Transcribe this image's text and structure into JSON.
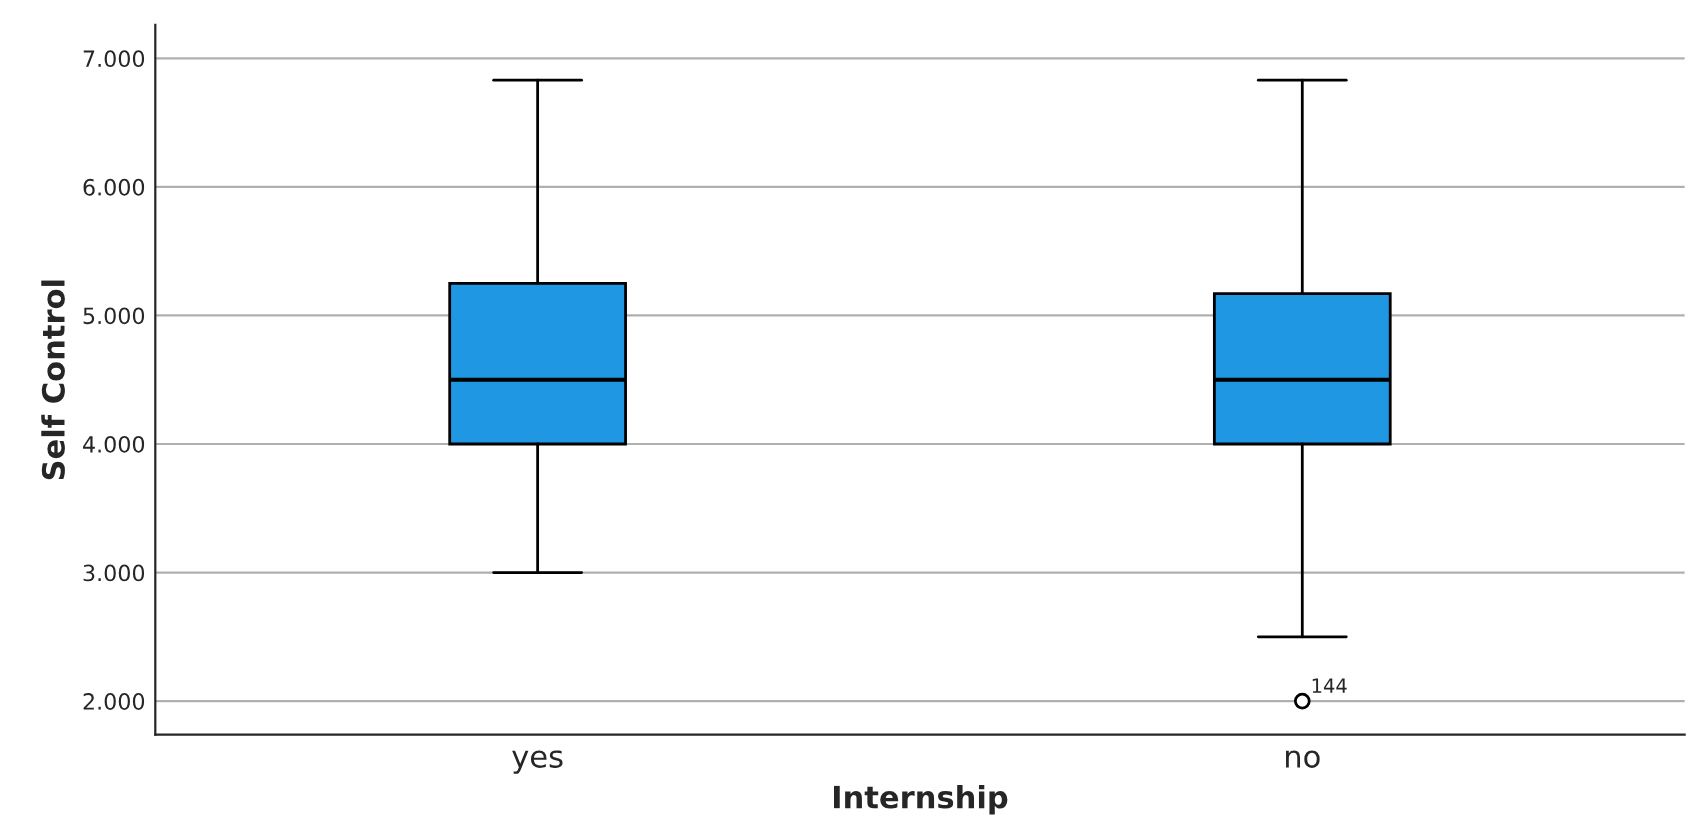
{
  "chart_data": {
    "type": "box",
    "xlabel": "Internship",
    "ylabel": "Self Control",
    "categories": [
      "yes",
      "no"
    ],
    "color": "#1f97e2",
    "boxes": [
      {
        "low": 3.0,
        "q1": 4.0,
        "median": 4.5,
        "q3": 5.25,
        "high": 6.83
      },
      {
        "low": 2.5,
        "q1": 4.0,
        "median": 4.5,
        "q3": 5.17,
        "high": 6.83,
        "outliers": [
          2.0
        ]
      }
    ],
    "ylim": [
      1.74,
      7.26
    ],
    "yticks": [
      {
        "value": 2,
        "label": "2.000"
      },
      {
        "value": 3,
        "label": "3.000"
      },
      {
        "value": 4,
        "label": "4.000"
      },
      {
        "value": 5,
        "label": "5.000"
      },
      {
        "value": 6,
        "label": "6.000"
      },
      {
        "value": 7,
        "label": "7.000"
      }
    ],
    "grid": "y",
    "annotations": [
      "144"
    ]
  }
}
